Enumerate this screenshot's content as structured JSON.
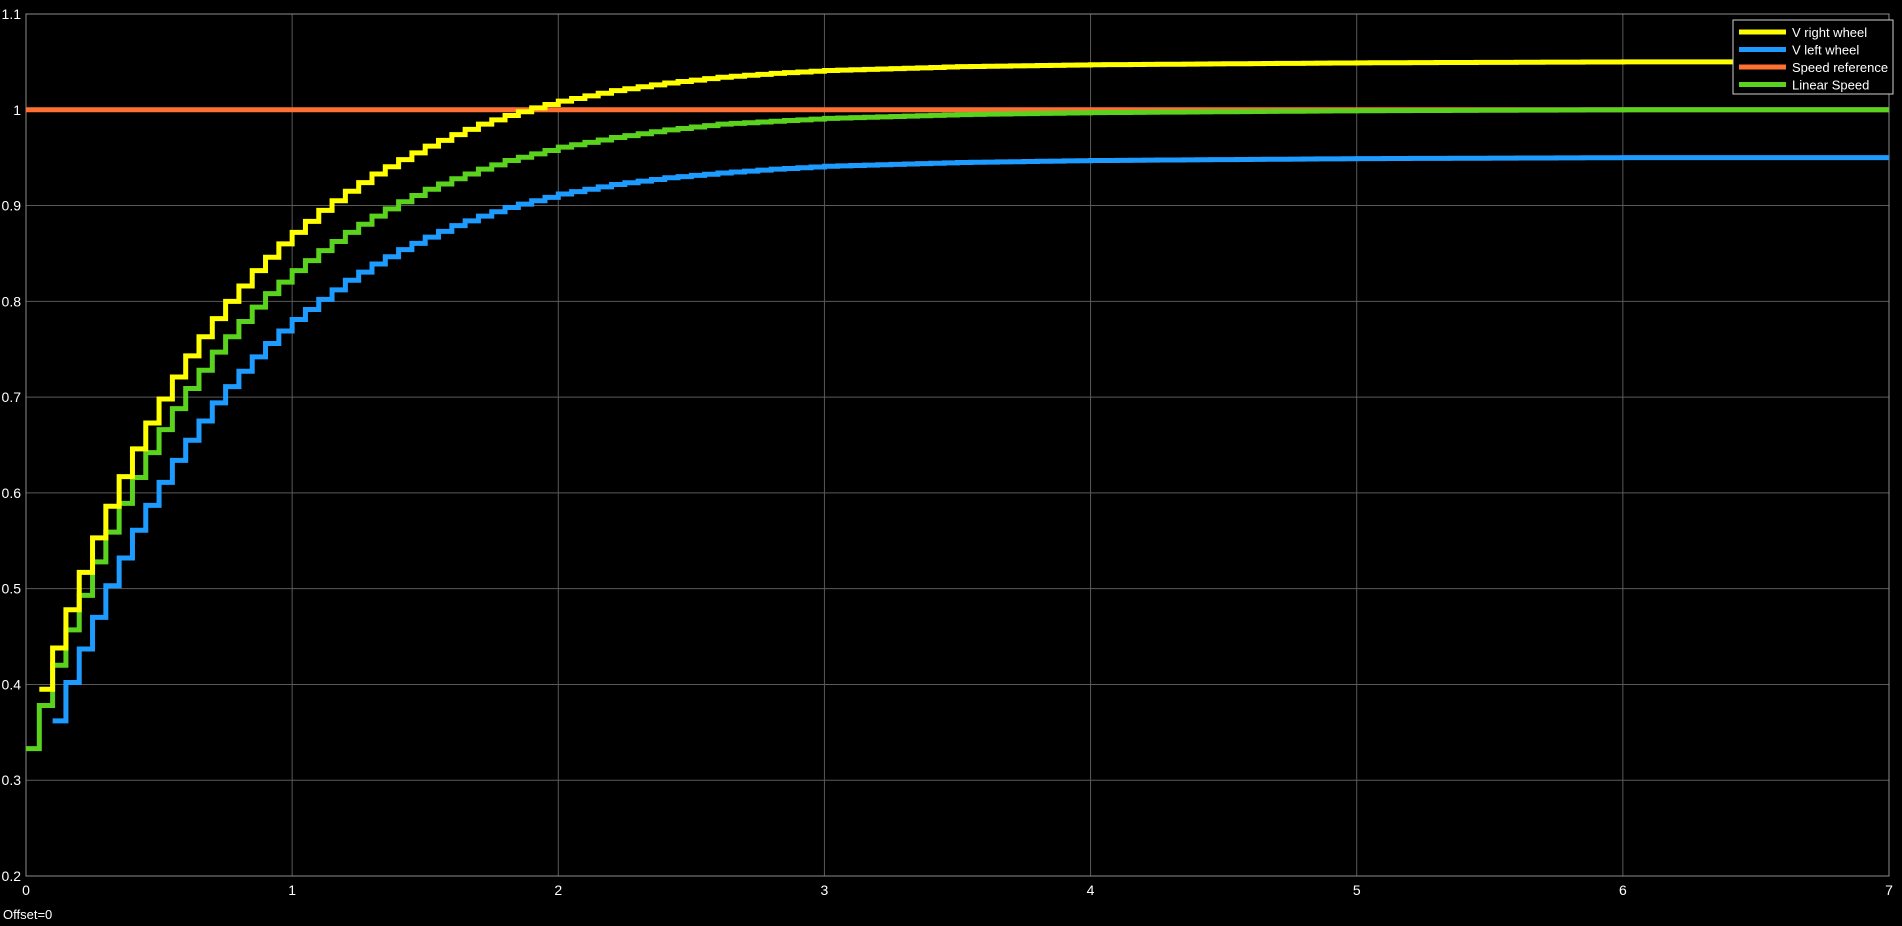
{
  "offset_label": "Offset=0",
  "chart_data": {
    "type": "line",
    "title": "",
    "xlabel": "",
    "ylabel": "",
    "xlim": [
      0,
      7
    ],
    "ylim": [
      0.2,
      1.1
    ],
    "x_ticks": [
      "0",
      "1",
      "2",
      "3",
      "4",
      "5",
      "6",
      "7"
    ],
    "y_ticks": [
      "0.2",
      "0.3",
      "0.4",
      "0.5",
      "0.6",
      "0.7",
      "0.8",
      "0.9",
      "1",
      "1.1"
    ],
    "grid": true,
    "legend_position": "top-right",
    "background_color": "#000000",
    "grid_color": "#5a5a5a",
    "step_interval": 0.05,
    "series": [
      {
        "name": "V right wheel",
        "color": "#ffff00",
        "style": "step",
        "x": [
          0.05,
          0.1,
          0.15,
          0.2,
          0.25,
          0.3,
          0.35,
          0.4,
          0.45,
          0.5,
          0.55,
          0.6,
          0.65,
          0.7,
          0.75,
          0.8,
          0.85,
          0.9,
          0.95,
          1.0,
          1.1,
          1.2,
          1.3,
          1.4,
          1.5,
          1.6,
          1.7,
          1.8,
          1.9,
          2.0,
          2.2,
          2.4,
          2.6,
          2.8,
          3.0,
          3.5,
          4.0,
          5.0,
          6.0,
          7.0
        ],
        "values": [
          0.395,
          0.438,
          0.478,
          0.517,
          0.553,
          0.586,
          0.617,
          0.646,
          0.673,
          0.698,
          0.721,
          0.743,
          0.763,
          0.782,
          0.8,
          0.816,
          0.832,
          0.846,
          0.86,
          0.872,
          0.895,
          0.915,
          0.933,
          0.948,
          0.962,
          0.974,
          0.985,
          0.994,
          1.002,
          1.009,
          1.02,
          1.028,
          1.034,
          1.038,
          1.041,
          1.045,
          1.047,
          1.049,
          1.05,
          1.05
        ]
      },
      {
        "name": "V left wheel",
        "color": "#1e9bff",
        "style": "step",
        "x": [
          0.1,
          0.15,
          0.2,
          0.25,
          0.3,
          0.35,
          0.4,
          0.45,
          0.5,
          0.55,
          0.6,
          0.65,
          0.7,
          0.75,
          0.8,
          0.85,
          0.9,
          0.95,
          1.0,
          1.1,
          1.2,
          1.3,
          1.4,
          1.5,
          1.6,
          1.7,
          1.8,
          1.9,
          2.0,
          2.2,
          2.4,
          2.6,
          2.8,
          3.0,
          3.5,
          4.0,
          5.0,
          6.0,
          7.0
        ],
        "values": [
          0.362,
          0.402,
          0.437,
          0.47,
          0.503,
          0.532,
          0.561,
          0.587,
          0.611,
          0.634,
          0.655,
          0.675,
          0.694,
          0.711,
          0.727,
          0.742,
          0.756,
          0.769,
          0.781,
          0.802,
          0.822,
          0.839,
          0.854,
          0.867,
          0.879,
          0.889,
          0.898,
          0.905,
          0.912,
          0.922,
          0.929,
          0.934,
          0.938,
          0.941,
          0.945,
          0.947,
          0.949,
          0.95,
          0.95
        ]
      },
      {
        "name": "Speed reference",
        "color": "#ff7033",
        "style": "line",
        "x": [
          0,
          7
        ],
        "values": [
          1.0,
          1.0
        ]
      },
      {
        "name": "Linear Speed",
        "color": "#5ad21e",
        "style": "step",
        "x": [
          0.0,
          0.05,
          0.1,
          0.15,
          0.2,
          0.25,
          0.3,
          0.35,
          0.4,
          0.45,
          0.5,
          0.55,
          0.6,
          0.65,
          0.7,
          0.75,
          0.8,
          0.85,
          0.9,
          0.95,
          1.0,
          1.1,
          1.2,
          1.3,
          1.4,
          1.5,
          1.6,
          1.7,
          1.8,
          1.9,
          2.0,
          2.2,
          2.4,
          2.6,
          2.8,
          3.0,
          3.5,
          4.0,
          5.0,
          6.0,
          7.0
        ],
        "values": [
          0.333,
          0.378,
          0.42,
          0.457,
          0.493,
          0.528,
          0.559,
          0.589,
          0.616,
          0.642,
          0.666,
          0.688,
          0.709,
          0.728,
          0.747,
          0.763,
          0.779,
          0.794,
          0.808,
          0.82,
          0.832,
          0.853,
          0.872,
          0.889,
          0.904,
          0.917,
          0.928,
          0.938,
          0.947,
          0.954,
          0.961,
          0.971,
          0.979,
          0.985,
          0.988,
          0.991,
          0.995,
          0.997,
          0.999,
          1.0,
          1.0
        ]
      }
    ]
  }
}
